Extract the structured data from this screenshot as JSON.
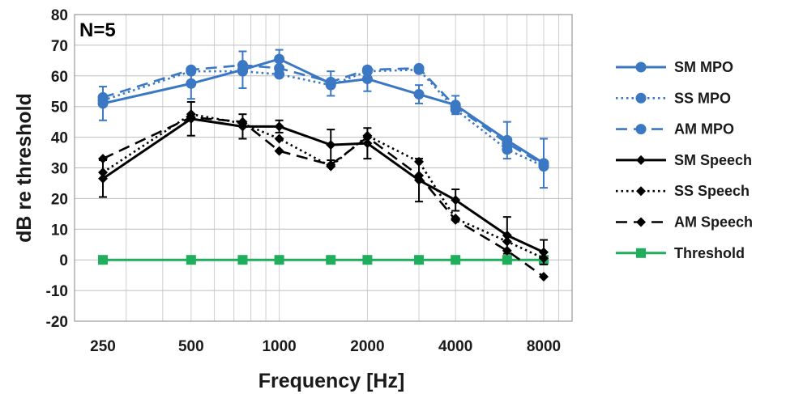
{
  "chart_data": {
    "type": "line",
    "title": "",
    "annotation": "N=5",
    "xlabel": "Frequency [Hz]",
    "ylabel": "dB re threshold",
    "x_scale": "log",
    "xlim": [
      200,
      10000
    ],
    "ylim": [
      -20,
      80
    ],
    "y_ticks": [
      -20,
      -10,
      0,
      10,
      20,
      30,
      40,
      50,
      60,
      70,
      80
    ],
    "x_ticks": [
      250,
      500,
      1000,
      2000,
      4000,
      8000
    ],
    "x_tick_labels": [
      "250",
      "500",
      "1000",
      "2000",
      "4000",
      "8000"
    ],
    "grid": true,
    "legend_position": "right",
    "series": [
      {
        "name": "SM MPO",
        "color": "#3b78c4",
        "dash": "solid",
        "marker": "circle",
        "x": [
          250,
          500,
          750,
          1000,
          1500,
          2000,
          3000,
          4000,
          6000,
          8000
        ],
        "y": [
          51,
          57.5,
          62,
          65.5,
          57.5,
          59,
          54,
          50.5,
          39,
          31.5
        ],
        "err": [
          5.5,
          5,
          6,
          3,
          4,
          4,
          3,
          3,
          6,
          8
        ]
      },
      {
        "name": "SS MPO",
        "color": "#3b78c4",
        "dash": "dot",
        "marker": "circle",
        "x": [
          250,
          500,
          750,
          1000,
          1500,
          2000,
          3000,
          4000,
          6000,
          8000
        ],
        "y": [
          52,
          61.5,
          61.5,
          60.5,
          57,
          61.5,
          62,
          49,
          36,
          30.5
        ]
      },
      {
        "name": "AM MPO",
        "color": "#3b78c4",
        "dash": "dash",
        "marker": "circle",
        "x": [
          250,
          500,
          750,
          1000,
          1500,
          2000,
          3000,
          4000,
          6000,
          8000
        ],
        "y": [
          53,
          62,
          63.5,
          62.5,
          58,
          62,
          62.5,
          50,
          38,
          31
        ]
      },
      {
        "name": "SM Speech",
        "color": "#000000",
        "dash": "solid",
        "marker": "diamond",
        "x": [
          250,
          500,
          750,
          1000,
          1500,
          2000,
          3000,
          4000,
          6000,
          8000
        ],
        "y": [
          26.5,
          46,
          43.5,
          43.5,
          37.5,
          38,
          26,
          19.5,
          8,
          2.5
        ],
        "err": [
          6,
          5.5,
          4,
          2,
          5,
          5,
          7,
          3.5,
          6,
          4
        ]
      },
      {
        "name": "SS Speech",
        "color": "#000000",
        "dash": "dot",
        "marker": "diamond",
        "x": [
          250,
          500,
          750,
          1000,
          1500,
          2000,
          3000,
          4000,
          6000,
          8000
        ],
        "y": [
          28.5,
          47.5,
          44.5,
          39.5,
          30.5,
          40.5,
          32,
          13.5,
          6,
          0.5
        ]
      },
      {
        "name": "AM Speech",
        "color": "#000000",
        "dash": "dash",
        "marker": "diamond",
        "x": [
          250,
          500,
          750,
          1000,
          1500,
          2000,
          3000,
          4000,
          6000,
          8000
        ],
        "y": [
          33,
          46.5,
          45,
          35.5,
          31,
          40,
          27.5,
          13,
          3,
          -5.5
        ]
      },
      {
        "name": "Threshold",
        "color": "#1fae5c",
        "dash": "solid",
        "marker": "square",
        "x": [
          250,
          500,
          750,
          1000,
          1500,
          2000,
          3000,
          4000,
          6000,
          8000
        ],
        "y": [
          0,
          0,
          0,
          0,
          0,
          0,
          0,
          0,
          0,
          0
        ]
      }
    ]
  }
}
